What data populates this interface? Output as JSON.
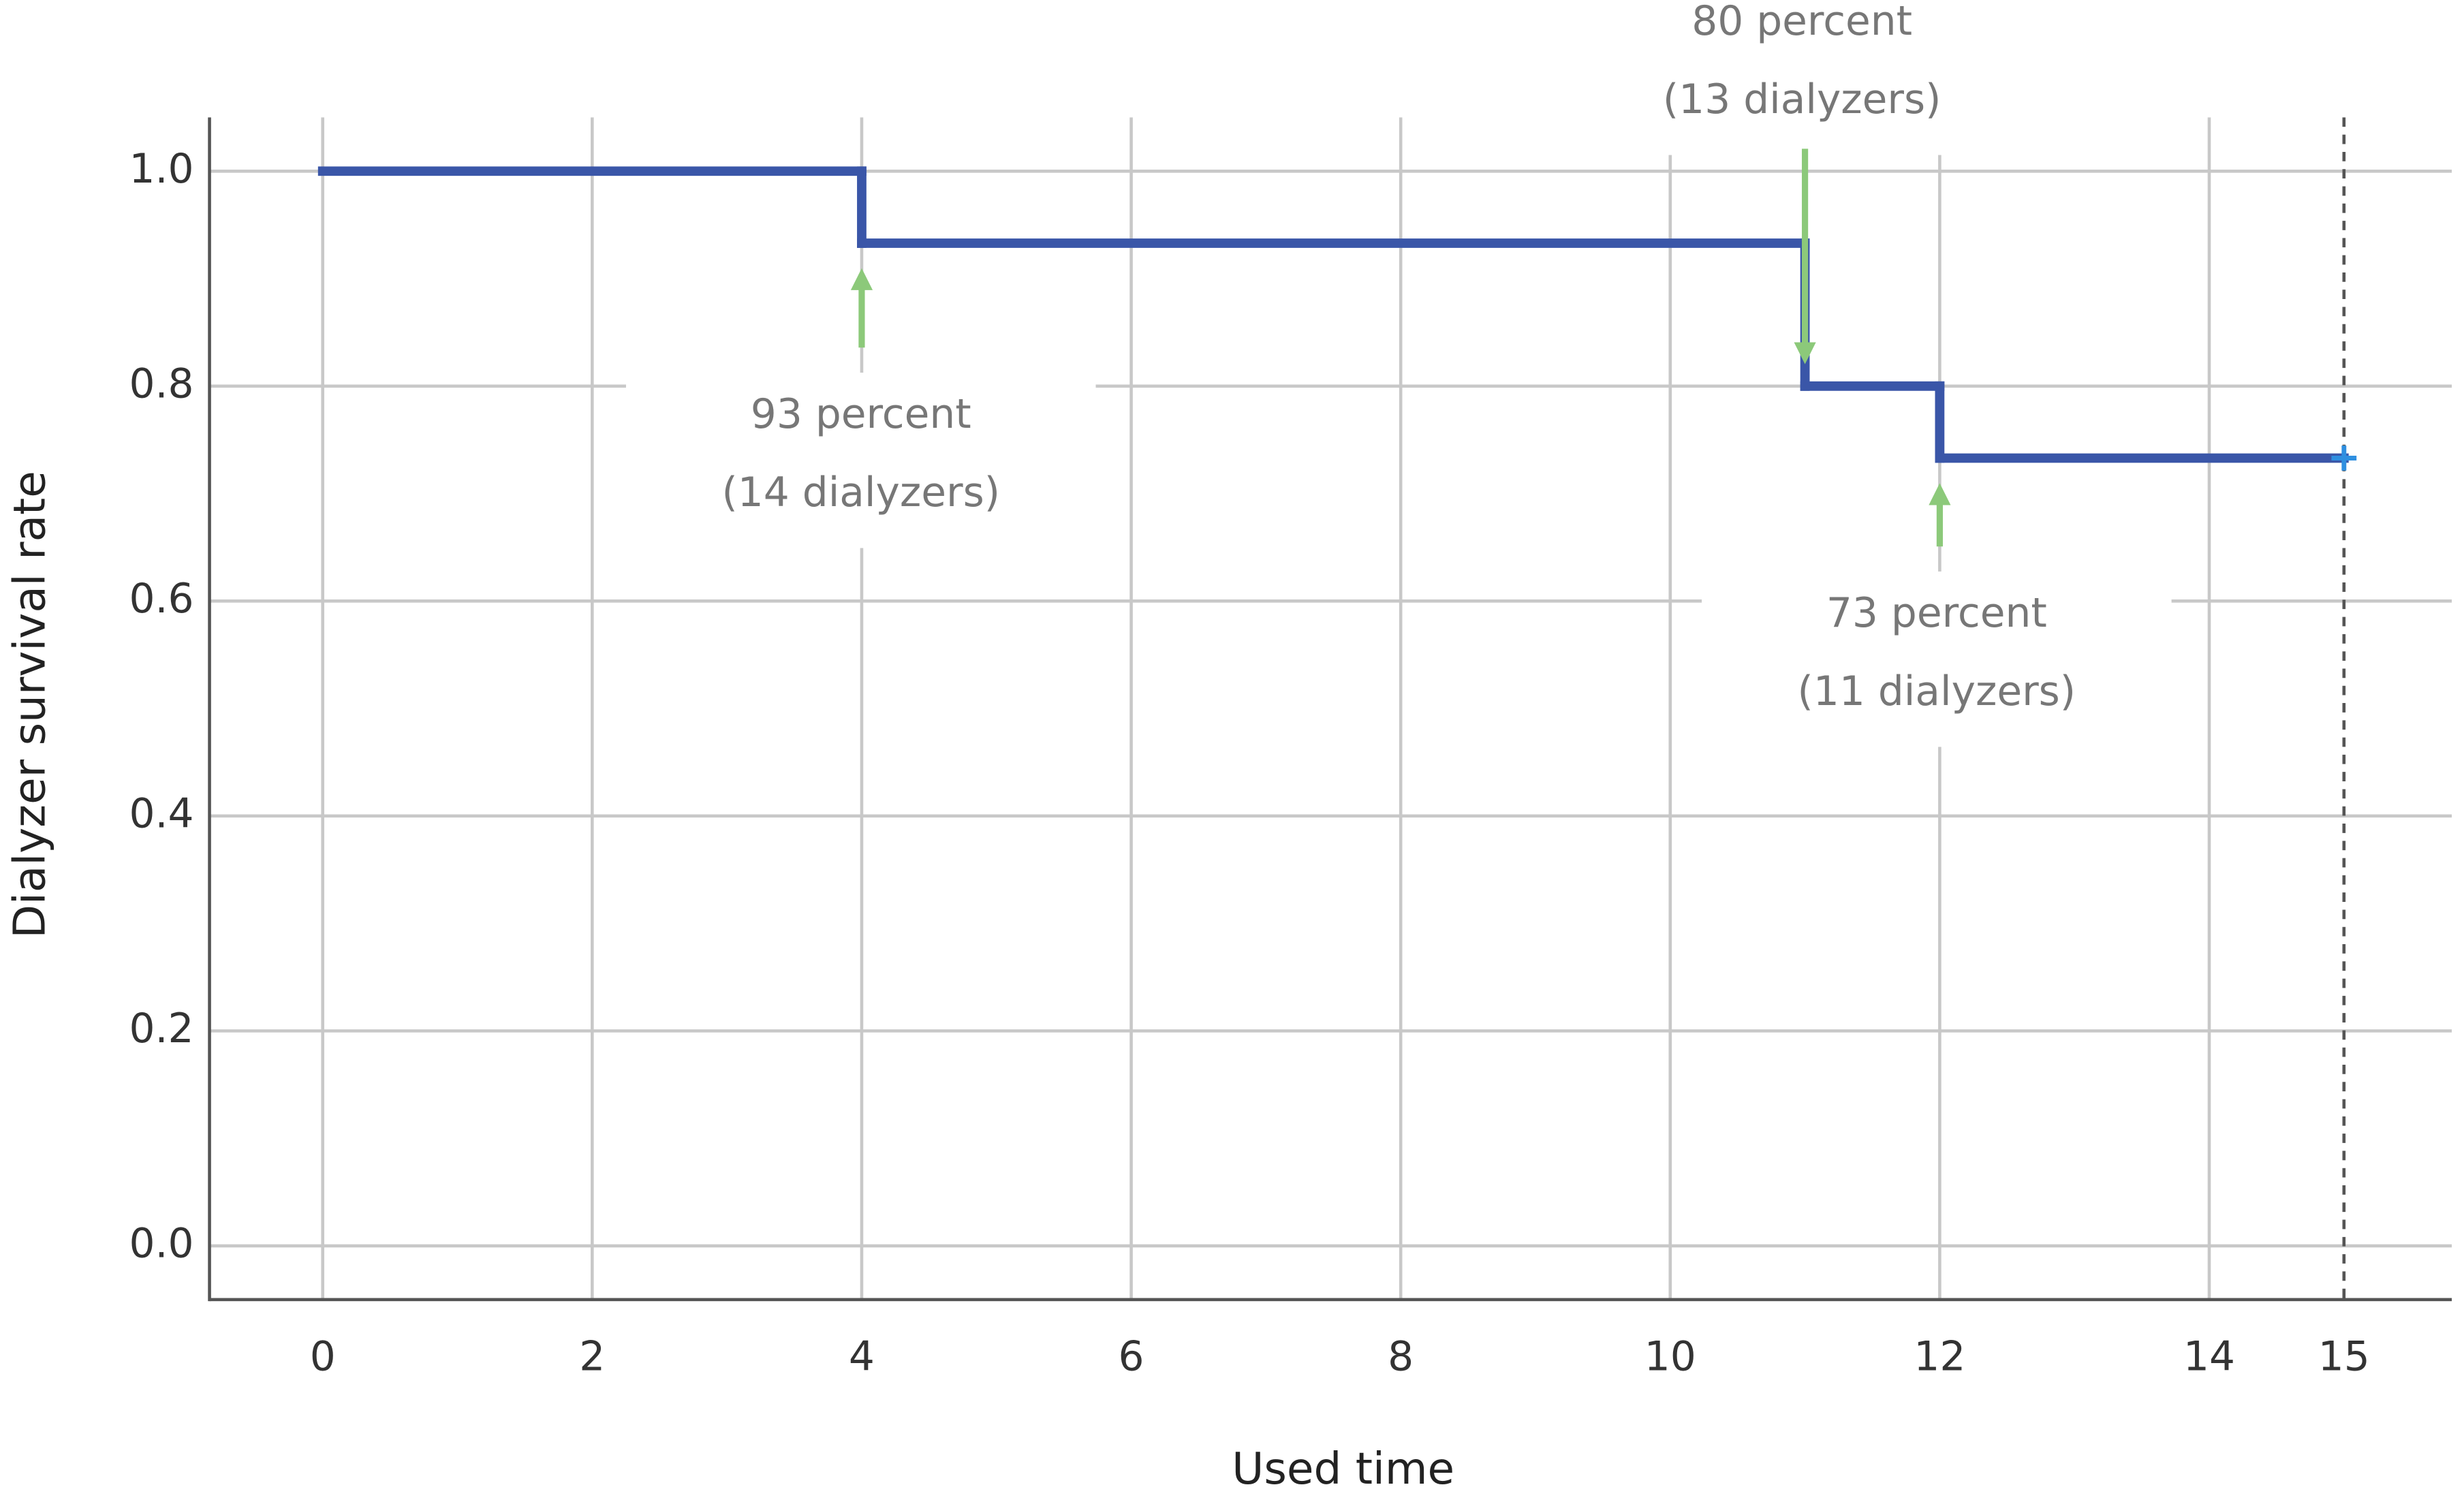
{
  "chart_data": {
    "type": "step",
    "x_label": "Used time",
    "y_label": "Dialyzer survival rate",
    "x": [
      0,
      4,
      11,
      12,
      15
    ],
    "values": [
      1.0,
      0.933,
      0.8,
      0.733,
      0.733
    ],
    "color": "#3a56a8",
    "censor_color": "#2f8fe0",
    "xlim": [
      -0.84,
      15.8
    ],
    "ylim": [
      -0.05,
      1.05
    ],
    "xticks": [
      0,
      2,
      4,
      6,
      8,
      10,
      12,
      14,
      15
    ],
    "yticks": [
      {
        "value": 0,
        "label": "0.0"
      },
      0.2,
      0.4,
      0.6,
      0.8,
      {
        "value": 1,
        "label": "1.0"
      }
    ],
    "grid": true,
    "annotations": [
      {
        "lines": [
          "93 percent",
          "(14 dialyzers)"
        ]
      },
      {
        "lines": [
          "80 percent",
          "(13 dialyzers)"
        ]
      },
      {
        "lines": [
          "73 percent",
          "(11 dialyzers)"
        ]
      }
    ],
    "annotation_color": "#8cc97a"
  }
}
